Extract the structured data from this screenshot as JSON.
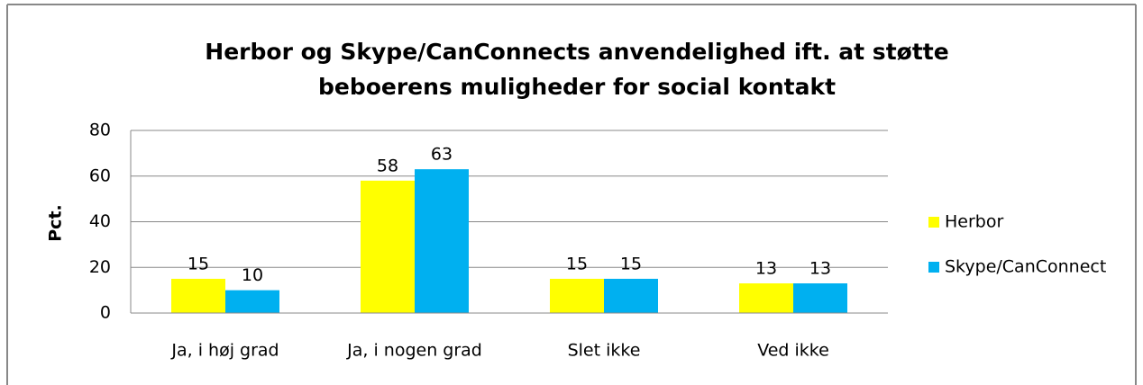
{
  "chart_data": {
    "type": "bar",
    "title": "Herbor og Skype/CanConnects anvendelighed ift. at støtte beboerens muligheder for social kontakt",
    "y_label": "Pct.",
    "categories": [
      "Ja, i høj grad",
      "Ja, i nogen grad",
      "Slet ikke",
      "Ved ikke"
    ],
    "series": [
      {
        "name": "Herbor",
        "color": "#ffff00",
        "values": [
          15,
          58,
          15,
          13
        ]
      },
      {
        "name": "Skype/CanConnect",
        "color": "#00b0f0",
        "values": [
          10,
          63,
          15,
          13
        ]
      }
    ],
    "ylim": [
      0,
      80
    ],
    "yticks": [
      0,
      20,
      40,
      60,
      80
    ],
    "grid": true,
    "legend": "right"
  }
}
